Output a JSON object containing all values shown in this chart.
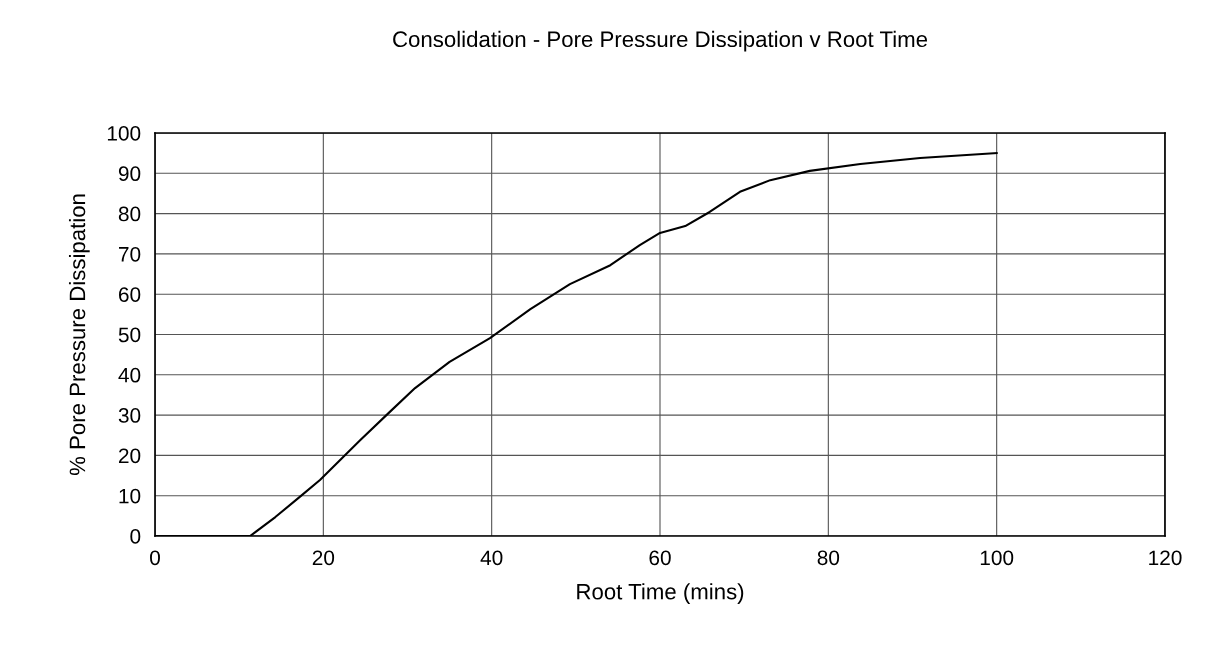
{
  "chart_data": {
    "type": "line",
    "title": "Consolidation - Pore Pressure Dissipation v Root Time",
    "xlabel": "Root Time (mins)",
    "ylabel": "% Pore Pressure Dissipation",
    "x": [
      0,
      11.3,
      14.3,
      17.2,
      19.6,
      22.6,
      24.4,
      27.9,
      30.9,
      35.0,
      39.8,
      44.6,
      49.3,
      54.1,
      57.6,
      60.0,
      63.0,
      65.9,
      69.5,
      73.1,
      77.8,
      83.8,
      90.9,
      100
    ],
    "series": [
      {
        "color": "#000000",
        "values": [
          0,
          0,
          4.7,
          9.7,
          13.9,
          20.1,
          23.8,
          30.8,
          36.7,
          43.2,
          49.1,
          56.3,
          62.5,
          67.2,
          72.2,
          75.2,
          76.9,
          80.4,
          85.4,
          88.3,
          90.6,
          92.3,
          93.8,
          95
        ]
      }
    ],
    "xlim": [
      0,
      120
    ],
    "xticks": [
      0,
      20,
      40,
      60,
      80,
      100,
      120
    ],
    "ylim": [
      0,
      100
    ],
    "yticks": [
      0,
      10,
      20,
      30,
      40,
      50,
      60,
      70,
      80,
      90,
      100
    ],
    "grid": true,
    "legend": false,
    "marker": "none",
    "line_style": "solid"
  }
}
